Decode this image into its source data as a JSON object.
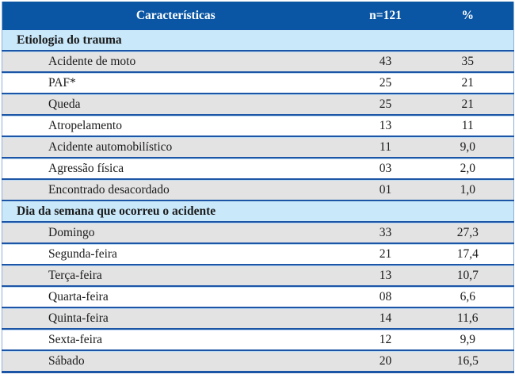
{
  "chart_data": {
    "type": "table",
    "columns": [
      "Características",
      "n=121",
      "%"
    ],
    "sections": [
      {
        "title": "Etiologia do trauma",
        "rows": [
          {
            "label": "Acidente de moto",
            "n": "43",
            "pct": "35"
          },
          {
            "label": "PAF*",
            "n": "25",
            "pct": "21"
          },
          {
            "label": "Queda",
            "n": "25",
            "pct": "21"
          },
          {
            "label": "Atropelamento",
            "n": "13",
            "pct": "11"
          },
          {
            "label": "Acidente automobilístico",
            "n": "11",
            "pct": "9,0"
          },
          {
            "label": "Agressão física",
            "n": "03",
            "pct": "2,0"
          },
          {
            "label": "Encontrado desacordado",
            "n": "01",
            "pct": "1,0"
          }
        ]
      },
      {
        "title": "Dia da semana que ocorreu o acidente",
        "rows": [
          {
            "label": "Domingo",
            "n": "33",
            "pct": "27,3"
          },
          {
            "label": "Segunda-feira",
            "n": "21",
            "pct": "17,4"
          },
          {
            "label": "Terça-feira",
            "n": "13",
            "pct": "10,7"
          },
          {
            "label": "Quarta-feira",
            "n": "08",
            "pct": "6,6"
          },
          {
            "label": "Quinta-feira",
            "n": "14",
            "pct": "11,6"
          },
          {
            "label": "Sexta-feira",
            "n": "12",
            "pct": "9,9"
          },
          {
            "label": "Sábado",
            "n": "20",
            "pct": "16,5"
          }
        ]
      }
    ],
    "colors": {
      "header_bg": "#0a56a4",
      "header_text": "#ffffff",
      "section_bg": "#c9e8fa",
      "row_shade_bg": "#e4e3e3",
      "row_plain_bg": "#ffffff",
      "divider": "#1d55a6"
    }
  }
}
